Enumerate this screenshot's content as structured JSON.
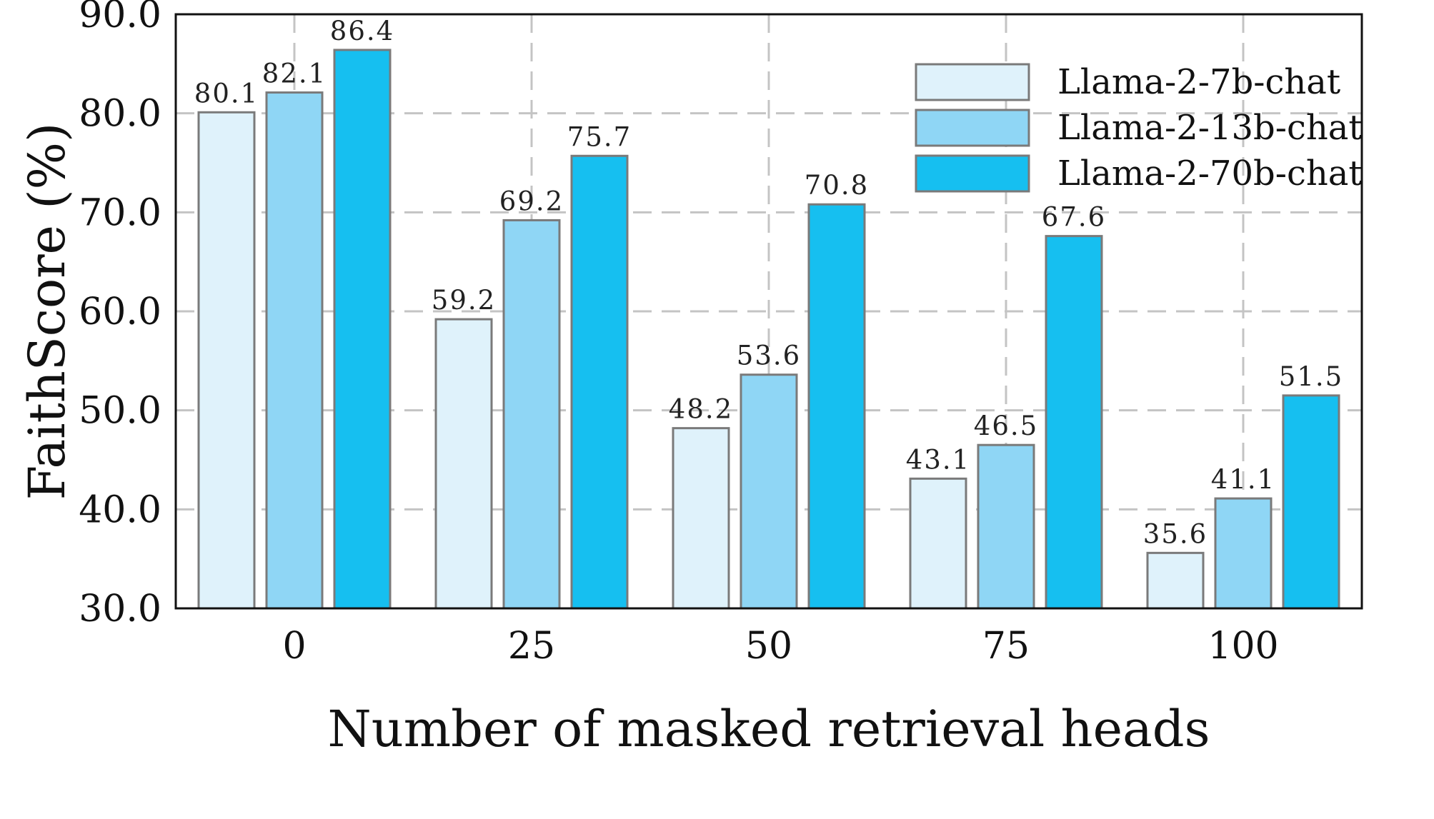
{
  "chart_data": {
    "type": "bar",
    "xlabel": "Number of masked retrieval heads",
    "ylabel": "FaithScore (%)",
    "categories": [
      "0",
      "25",
      "50",
      "75",
      "100"
    ],
    "ylim": [
      30,
      90
    ],
    "yticks": [
      "30.0",
      "40.0",
      "50.0",
      "60.0",
      "70.0",
      "80.0",
      "90.0"
    ],
    "grid": true,
    "legend_position": "top-right",
    "series": [
      {
        "name": "Llama-2-7b-chat",
        "color": "#dff2fb",
        "values": [
          80.1,
          59.2,
          48.2,
          43.1,
          35.6
        ],
        "labels": [
          "80.1",
          "59.2",
          "48.2",
          "43.1",
          "35.6"
        ]
      },
      {
        "name": "Llama-2-13b-chat",
        "color": "#8fd6f5",
        "values": [
          82.1,
          69.2,
          53.6,
          46.5,
          41.1
        ],
        "labels": [
          "82.1",
          "69.2",
          "53.6",
          "46.5",
          "41.1"
        ]
      },
      {
        "name": "Llama-2-70b-chat",
        "color": "#16bff0",
        "values": [
          86.4,
          75.7,
          70.8,
          67.6,
          51.5
        ],
        "labels": [
          "86.4",
          "75.7",
          "70.8",
          "67.6",
          "51.5"
        ]
      }
    ]
  }
}
